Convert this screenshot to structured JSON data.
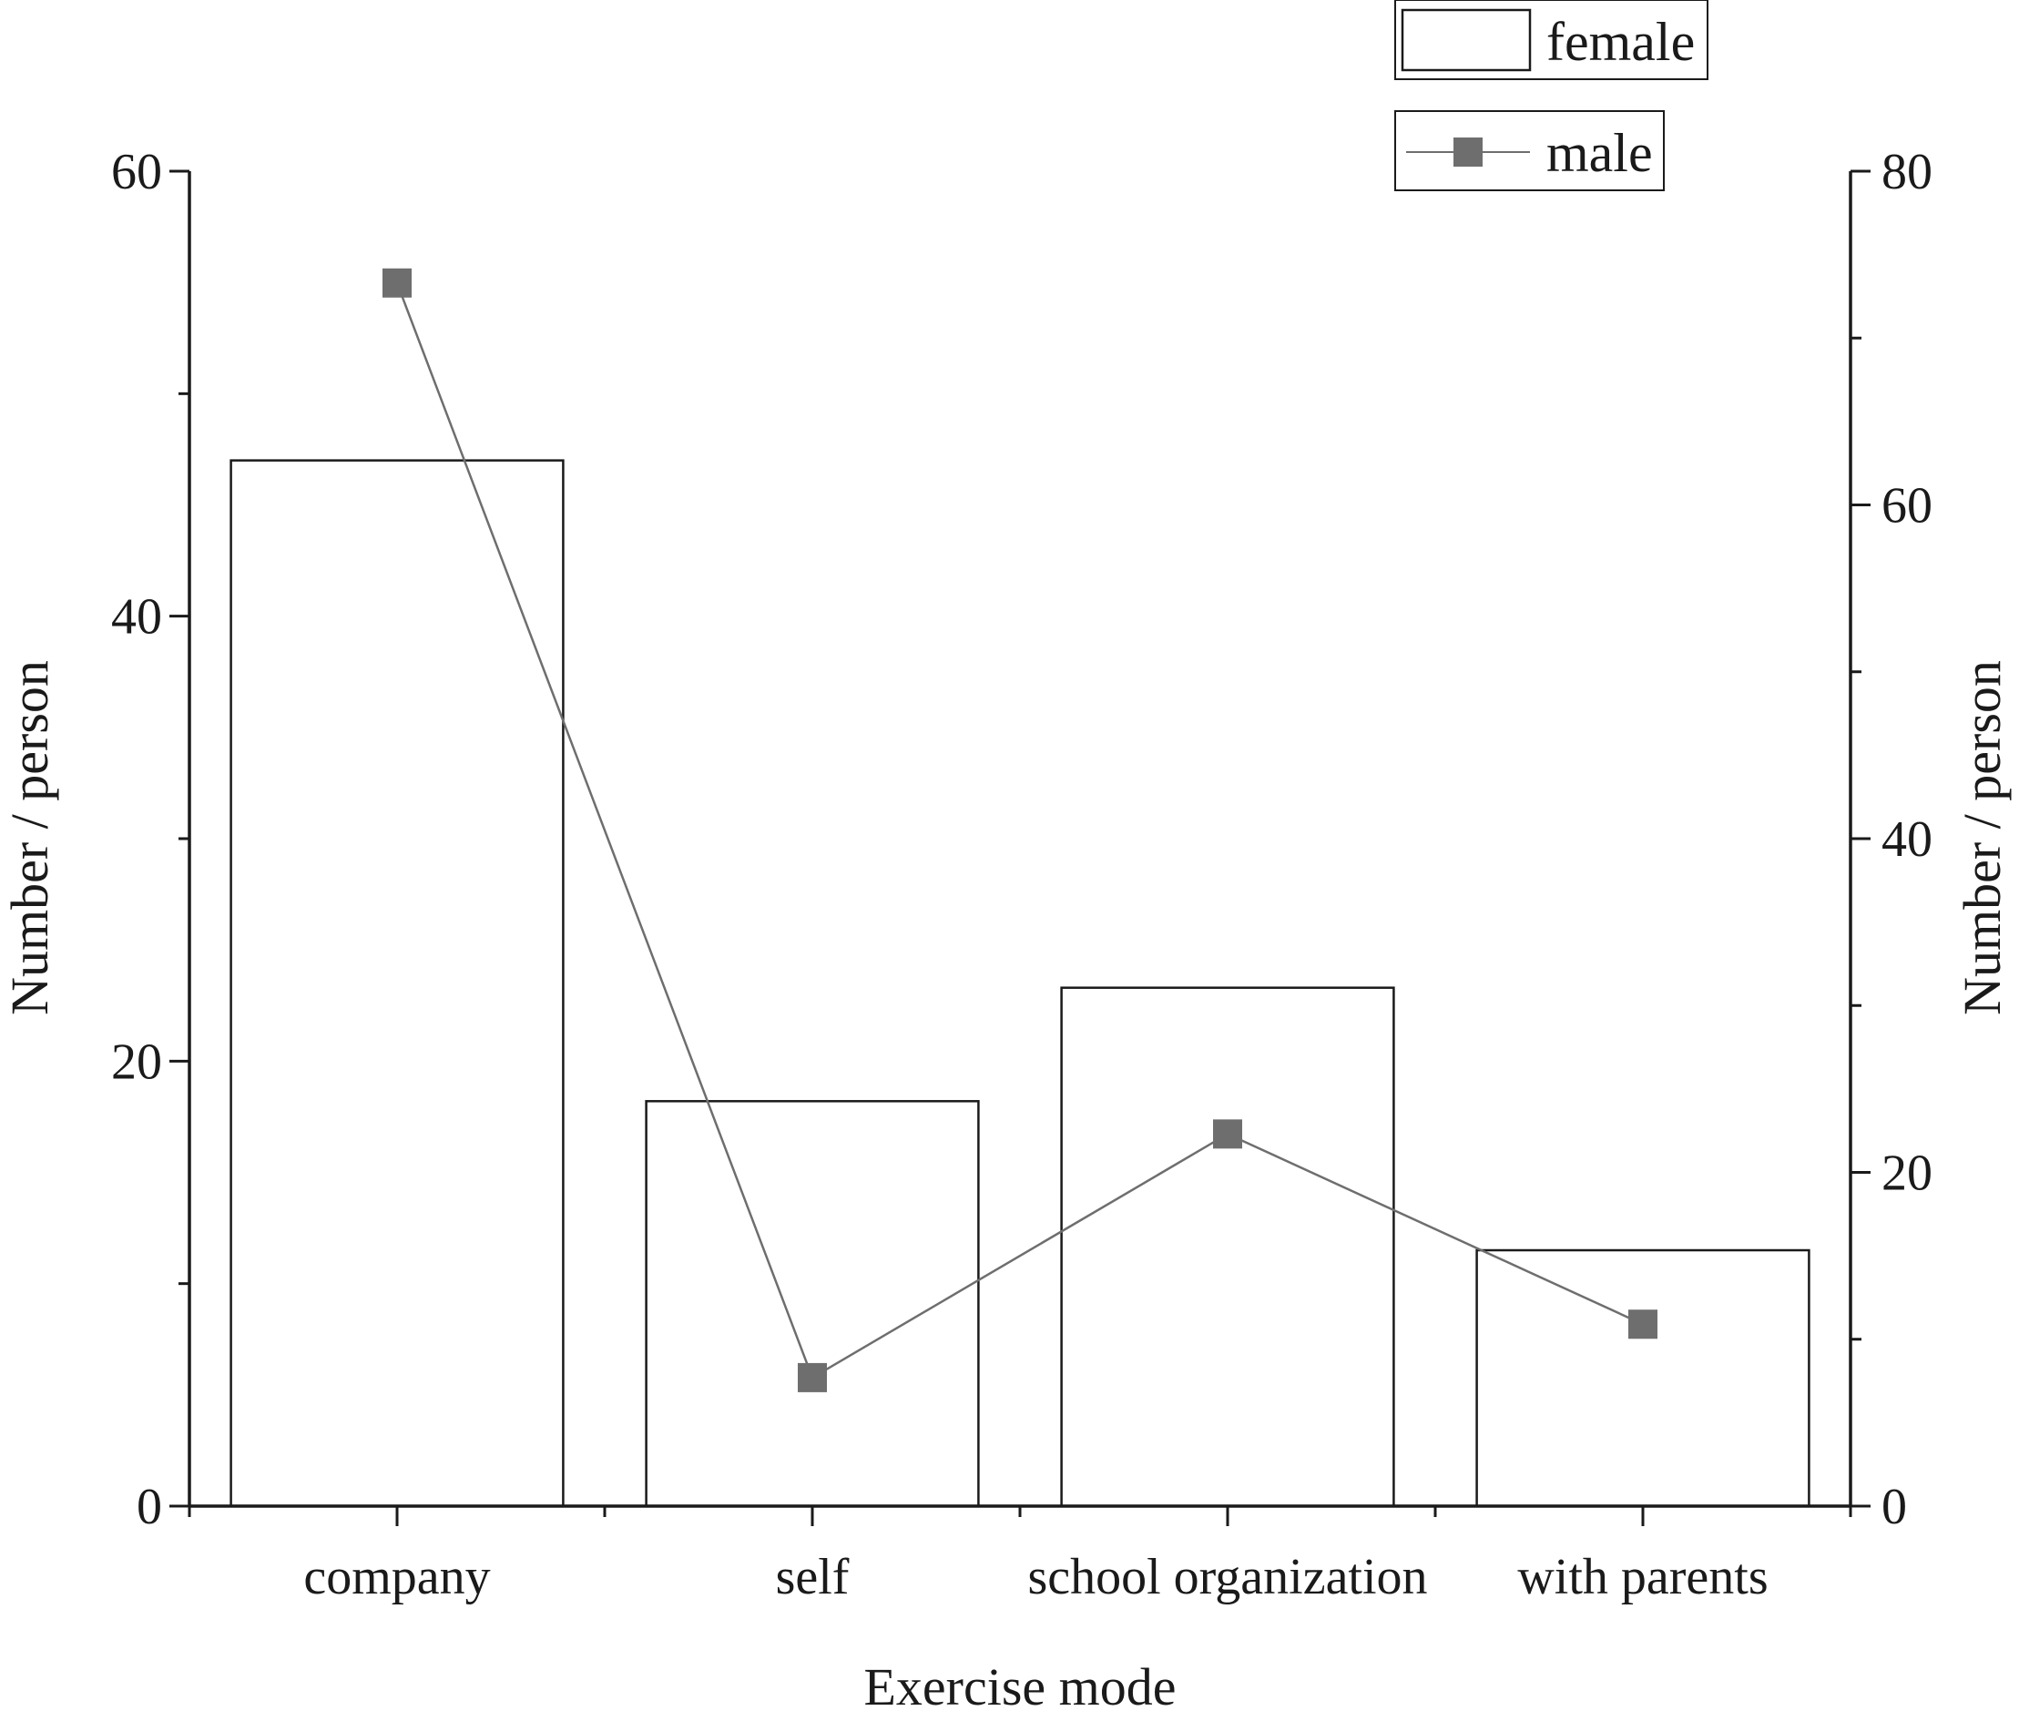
{
  "chart_data": {
    "type": "bar",
    "categories": [
      "company",
      "self",
      "school organization",
      "with parents"
    ],
    "series": [
      {
        "name": "female",
        "type": "bar",
        "axis": "left",
        "values": [
          47,
          18.2,
          23.3,
          11.5
        ],
        "color": "#ffffff",
        "stroke": "#1a1a1a"
      },
      {
        "name": "male",
        "type": "line",
        "axis": "right",
        "marker": "square",
        "values": [
          73.3,
          7.7,
          22.3,
          10.9
        ],
        "color": "#6e6e6e"
      }
    ],
    "xlabel": "Exercise mode",
    "ylabel": "Number / person",
    "y2label": "Number / person",
    "ylim": [
      0,
      60
    ],
    "y2lim": [
      0,
      80
    ],
    "yticks": [
      0,
      20,
      40,
      60
    ],
    "y2ticks": [
      0,
      20,
      40,
      60,
      80
    ],
    "yticks_labels": [
      "0",
      "20",
      "40",
      "60"
    ],
    "y2ticks_labels": [
      "0",
      "20",
      "40",
      "60",
      "80"
    ],
    "grid": false,
    "legend": "top-right"
  }
}
